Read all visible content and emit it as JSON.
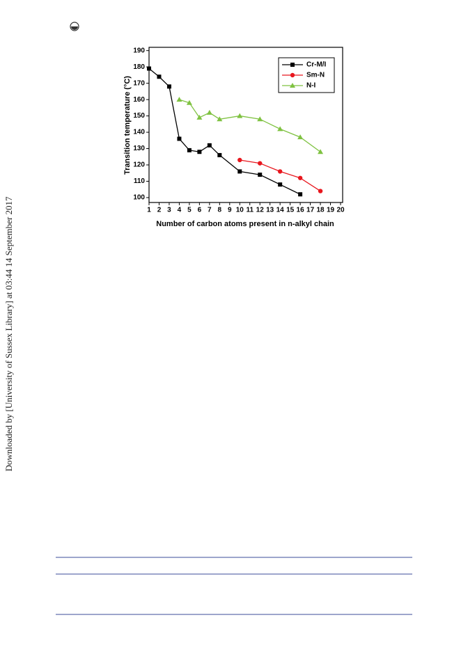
{
  "sidebar": "Downloaded by [University of Sussex Library] at 03:44 14 September 2017",
  "chart_data": {
    "type": "line",
    "x_label": "Number of carbon atoms present in n-alkyl chain",
    "y_label": "Transition temperature (°C)",
    "xlim": [
      1,
      20
    ],
    "xticks": [
      1,
      2,
      3,
      4,
      5,
      6,
      7,
      8,
      9,
      10,
      11,
      12,
      13,
      14,
      15,
      16,
      17,
      18,
      19,
      20
    ],
    "ylim": [
      97,
      192
    ],
    "yticks": [
      100,
      110,
      120,
      130,
      140,
      150,
      160,
      170,
      180,
      190
    ],
    "legend": "top-right",
    "series": [
      {
        "name": "Cr-M/I",
        "color": "#000000",
        "marker": "square",
        "x": [
          1,
          2,
          3,
          4,
          5,
          6,
          7,
          8,
          10,
          12,
          14,
          16
        ],
        "values": [
          179,
          174,
          168,
          136,
          129,
          128,
          132,
          126,
          116,
          114,
          108,
          102
        ]
      },
      {
        "name": "Sm-N",
        "color": "#e8171e",
        "marker": "circle",
        "x": [
          10,
          12,
          14,
          16,
          18
        ],
        "values": [
          123,
          121,
          116,
          112,
          104
        ]
      },
      {
        "name": "N-I",
        "color": "#7fc241",
        "marker": "triangle",
        "x": [
          4,
          5,
          6,
          7,
          8,
          10,
          12,
          14,
          16,
          18
        ],
        "values": [
          160,
          158,
          149,
          152,
          148,
          150,
          148,
          142,
          137,
          128
        ]
      }
    ]
  }
}
